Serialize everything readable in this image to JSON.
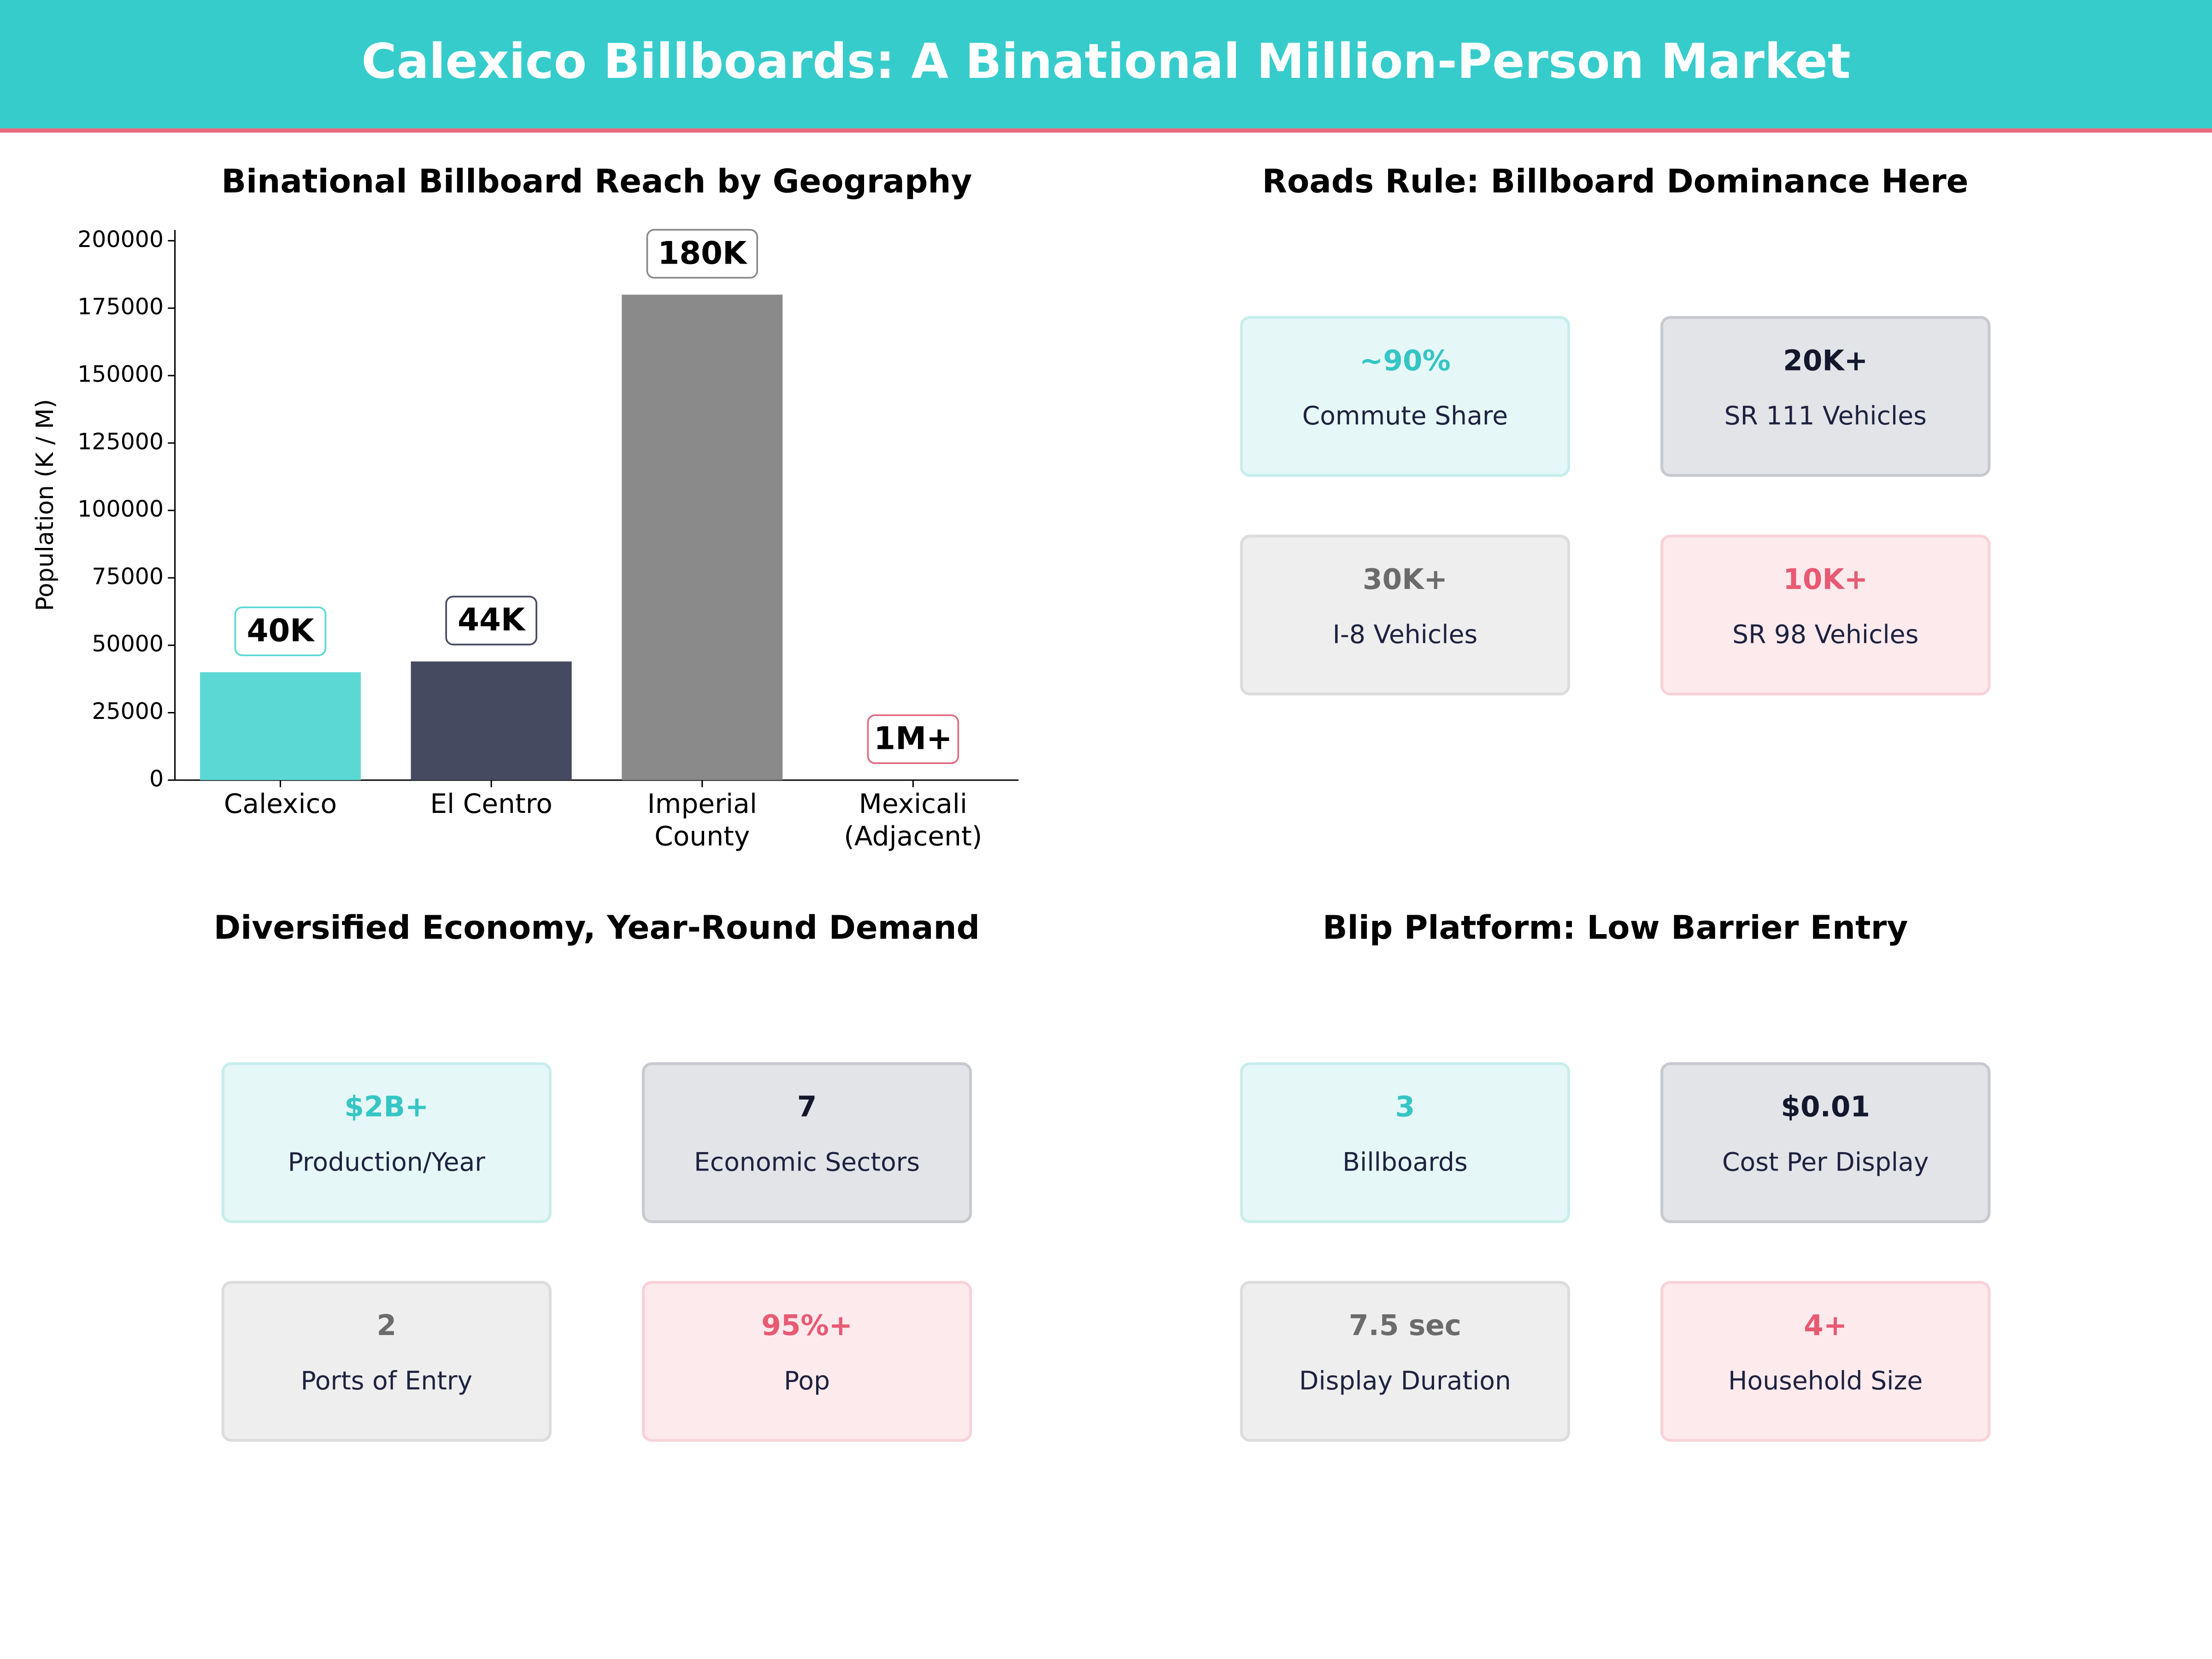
{
  "header": {
    "title": "Calexico Billboards: A Binational Million-Person Market"
  },
  "chart_data": {
    "type": "bar",
    "title": "Binational Billboard Reach by Geography",
    "y_label": "Population (K / M)",
    "categories": [
      "Calexico",
      "El Centro",
      "Imperial\nCounty",
      "Mexicali\n(Adjacent)"
    ],
    "values": [
      40000,
      44000,
      180000,
      null
    ],
    "value_labels": [
      "40K",
      "44K",
      "180K",
      "1M+"
    ],
    "colors": [
      "#5cd8d4",
      "#464a60",
      "#8a8a8a",
      "#e06a82"
    ],
    "ylim": [
      0,
      204000
    ],
    "yticks": [
      0,
      25000,
      50000,
      75000,
      100000,
      125000,
      150000,
      175000,
      200000
    ],
    "grid": false
  },
  "panels": [
    {
      "title": "Roads Rule: Billboard Dominance Here",
      "cards": [
        {
          "value": "~90%",
          "label": "Commute Share"
        },
        {
          "value": "20K+",
          "label": "SR 111  Vehicles"
        },
        {
          "value": "30K+",
          "label": "I-8  Vehicles"
        },
        {
          "value": "10K+",
          "label": "SR 98  Vehicles"
        }
      ]
    },
    {
      "title": "Diversified Economy, Year-Round Demand",
      "cards": [
        {
          "value": "$2B+",
          "label": "Production/Year"
        },
        {
          "value": "7",
          "label": "Economic Sectors"
        },
        {
          "value": "2",
          "label": "Ports of Entry"
        },
        {
          "value": "95%+",
          "label": "Pop"
        }
      ]
    },
    {
      "title": "Blip Platform: Low Barrier Entry",
      "cards": [
        {
          "value": "3",
          "label": "Billboards"
        },
        {
          "value": "$0.01",
          "label": "Cost Per Display"
        },
        {
          "value": "7.5 sec",
          "label": "Display Duration"
        },
        {
          "value": "4+",
          "label": "Household Size"
        }
      ]
    }
  ]
}
